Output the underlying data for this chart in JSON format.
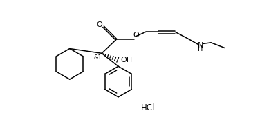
{
  "background_color": "#ffffff",
  "line_color": "#000000",
  "text_color": "#000000",
  "fig_width": 4.05,
  "fig_height": 1.93,
  "dpi": 100,
  "xlim": [
    0,
    10
  ],
  "ylim": [
    0,
    4.8
  ],
  "hcl_text": "HCl",
  "oh_text": "OH",
  "nh_text": "NH",
  "o_carbonyl_text": "O",
  "o_ester_text": "O",
  "and1_text": "&1",
  "h_text": "H"
}
